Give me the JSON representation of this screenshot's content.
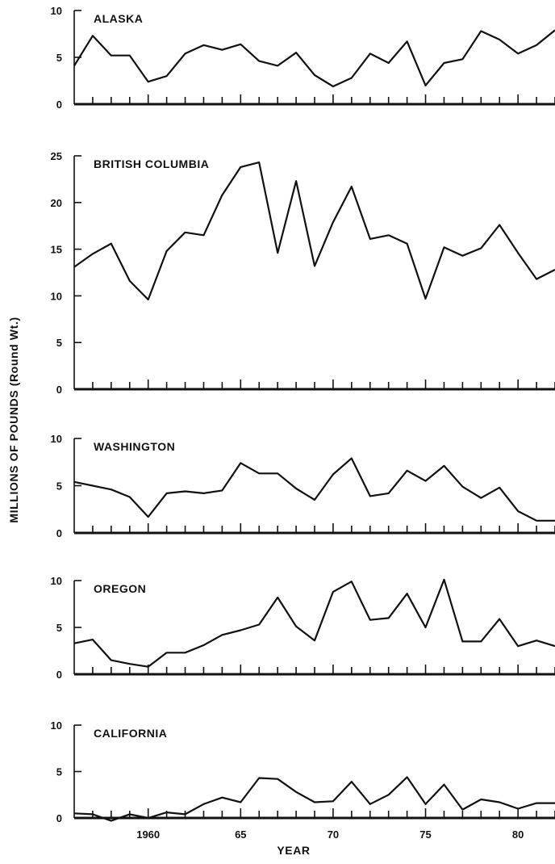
{
  "chart_data": {
    "type": "line",
    "ylabel": "MILLIONS OF POUNDS (Round Wt.)",
    "xlabel": "YEAR",
    "x_tick_labels": [
      "1960",
      "65",
      "70",
      "75",
      "80"
    ],
    "x_tick_years": [
      1960,
      1965,
      1970,
      1975,
      1980
    ],
    "x_range": [
      1956,
      1982
    ],
    "panels": [
      {
        "title": "ALASKA",
        "ylim": [
          0,
          10
        ],
        "y_ticks": [
          0,
          5,
          10
        ],
        "y_tick_labels": [
          "0",
          "5",
          "10"
        ],
        "x": [
          1956,
          1957,
          1958,
          1959,
          1960,
          1961,
          1962,
          1963,
          1964,
          1965,
          1966,
          1967,
          1968,
          1969,
          1970,
          1971,
          1972,
          1973,
          1974,
          1975,
          1976,
          1977,
          1978,
          1979,
          1980,
          1981,
          1982
        ],
        "values": [
          4.1,
          7.3,
          5.2,
          5.2,
          2.4,
          3.0,
          5.4,
          6.3,
          5.8,
          6.4,
          4.6,
          4.1,
          5.5,
          3.1,
          1.9,
          2.8,
          5.4,
          4.4,
          6.7,
          2.0,
          4.4,
          4.8,
          7.8,
          6.9,
          5.4,
          6.3,
          7.9
        ]
      },
      {
        "title": "BRITISH COLUMBIA",
        "ylim": [
          0,
          25
        ],
        "y_ticks": [
          0,
          5,
          10,
          15,
          20,
          25
        ],
        "y_tick_labels": [
          "0",
          "5",
          "10",
          "15",
          "20",
          "25"
        ],
        "x": [
          1956,
          1957,
          1958,
          1959,
          1960,
          1961,
          1962,
          1963,
          1964,
          1965,
          1966,
          1967,
          1968,
          1969,
          1970,
          1971,
          1972,
          1973,
          1974,
          1975,
          1976,
          1977,
          1978,
          1979,
          1980,
          1981,
          1982
        ],
        "values": [
          13.1,
          14.5,
          15.6,
          11.6,
          9.6,
          14.8,
          16.8,
          16.5,
          20.8,
          23.8,
          24.3,
          14.6,
          22.3,
          13.2,
          17.9,
          21.7,
          16.1,
          16.5,
          15.6,
          9.7,
          15.2,
          14.3,
          15.1,
          17.6,
          14.6,
          11.8,
          12.8
        ]
      },
      {
        "title": "WASHINGTON",
        "ylim": [
          0,
          10
        ],
        "y_ticks": [
          0,
          5,
          10
        ],
        "y_tick_labels": [
          "0",
          "5",
          "10"
        ],
        "x": [
          1956,
          1957,
          1958,
          1959,
          1960,
          1961,
          1962,
          1963,
          1964,
          1965,
          1966,
          1967,
          1968,
          1969,
          1970,
          1971,
          1972,
          1973,
          1974,
          1975,
          1976,
          1977,
          1978,
          1979,
          1980,
          1981,
          1982
        ],
        "values": [
          5.4,
          5.0,
          4.6,
          3.8,
          1.7,
          4.2,
          4.4,
          4.2,
          4.5,
          7.4,
          6.3,
          6.3,
          4.7,
          3.5,
          6.2,
          7.9,
          3.9,
          4.2,
          6.6,
          5.5,
          7.1,
          4.9,
          3.7,
          4.8,
          2.3,
          1.3,
          1.3
        ]
      },
      {
        "title": "OREGON",
        "ylim": [
          0,
          10
        ],
        "y_ticks": [
          0,
          5,
          10
        ],
        "y_tick_labels": [
          "0",
          "5",
          "10"
        ],
        "x": [
          1956,
          1957,
          1958,
          1959,
          1960,
          1961,
          1962,
          1963,
          1964,
          1965,
          1966,
          1967,
          1968,
          1969,
          1970,
          1971,
          1972,
          1973,
          1974,
          1975,
          1976,
          1977,
          1978,
          1979,
          1980,
          1981,
          1982
        ],
        "values": [
          3.3,
          3.7,
          1.5,
          1.1,
          0.8,
          2.3,
          2.3,
          3.1,
          4.2,
          4.7,
          5.3,
          8.2,
          5.1,
          3.6,
          8.8,
          9.9,
          5.8,
          6.0,
          8.6,
          5.0,
          10.1,
          3.5,
          3.5,
          5.9,
          3.0,
          3.6,
          3.0
        ]
      },
      {
        "title": "CALIFORNIA",
        "ylim": [
          0,
          10
        ],
        "y_ticks": [
          0,
          5,
          10
        ],
        "y_tick_labels": [
          "0",
          "5",
          "10"
        ],
        "x": [
          1956,
          1957,
          1958,
          1959,
          1960,
          1961,
          1962,
          1963,
          1964,
          1965,
          1966,
          1967,
          1968,
          1969,
          1970,
          1971,
          1972,
          1973,
          1974,
          1975,
          1976,
          1977,
          1978,
          1979,
          1980,
          1981,
          1982
        ],
        "values": [
          0.5,
          0.4,
          -0.3,
          0.4,
          0.0,
          0.6,
          0.4,
          1.5,
          2.2,
          1.7,
          4.3,
          4.2,
          2.8,
          1.7,
          1.8,
          3.9,
          1.5,
          2.5,
          4.4,
          1.5,
          3.6,
          0.9,
          2.0,
          1.7,
          1.0,
          1.6,
          1.6
        ]
      }
    ]
  }
}
